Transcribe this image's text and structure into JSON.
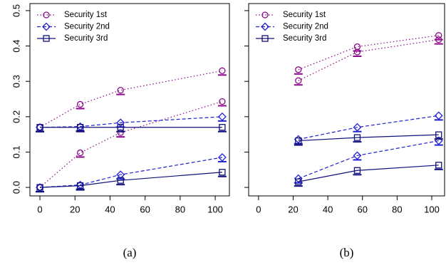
{
  "chart_data": [
    {
      "type": "line",
      "caption": "(a)",
      "x": [
        0,
        23,
        46,
        104
      ],
      "xlim": [
        -5.7,
        108.1
      ],
      "xticks": [
        0,
        20,
        40,
        60,
        80,
        100
      ],
      "ylim": [
        -0.024,
        0.52
      ],
      "yticks": [
        {
          "value": 0,
          "label": "0.0"
        },
        0.1,
        0.2,
        0.3,
        0.4,
        0.5
      ],
      "ytick_labels": true,
      "legend": "top-left",
      "series": [
        {
          "name": "Security 1st",
          "color": "#8b0a8b",
          "dash": "dotted",
          "marker": "circle",
          "lines": [
            [
              0.17,
              0.235,
              0.275,
              0.33
            ],
            [
              0,
              0.098,
              0.155,
              0.243
            ]
          ]
        },
        {
          "name": "Security 2nd",
          "color": "#2020d0",
          "dash": "dashed",
          "marker": "diamond",
          "lines": [
            [
              0.17,
              0.172,
              0.183,
              0.2
            ],
            [
              0,
              0.007,
              0.036,
              0.085
            ]
          ]
        },
        {
          "name": "Security 3rd",
          "color": "#10107a",
          "dash": "solid",
          "marker": "square",
          "lines": [
            [
              0.17,
              0.17,
              0.17,
              0.17
            ],
            [
              0,
              0.005,
              0.02,
              0.043
            ]
          ]
        }
      ]
    },
    {
      "type": "line",
      "caption": "(b)",
      "x": [
        23,
        57,
        104
      ],
      "xlim": [
        -5.7,
        107.4
      ],
      "xticks": [
        0,
        20,
        40,
        60,
        80,
        100
      ],
      "ylim": [
        -0.024,
        0.52
      ],
      "yticks": [
        0,
        0.1,
        0.2,
        0.3,
        0.4,
        0.5
      ],
      "ytick_labels": false,
      "legend": "top-left",
      "series": [
        {
          "name": "Security 1st",
          "color": "#8b0a8b",
          "dash": "dotted",
          "marker": "circle",
          "lines": [
            [
              0.333,
              0.398,
              0.43
            ],
            [
              0.302,
              0.383,
              0.418
            ]
          ]
        },
        {
          "name": "Security 2nd",
          "color": "#2020d0",
          "dash": "dashed",
          "marker": "diamond",
          "lines": [
            [
              0.136,
              0.17,
              0.203
            ],
            [
              0.025,
              0.09,
              0.132
            ]
          ]
        },
        {
          "name": "Security 3rd",
          "color": "#10107a",
          "dash": "solid",
          "marker": "square",
          "lines": [
            [
              0.132,
              0.141,
              0.149
            ],
            [
              0.016,
              0.048,
              0.063
            ]
          ]
        }
      ]
    }
  ]
}
